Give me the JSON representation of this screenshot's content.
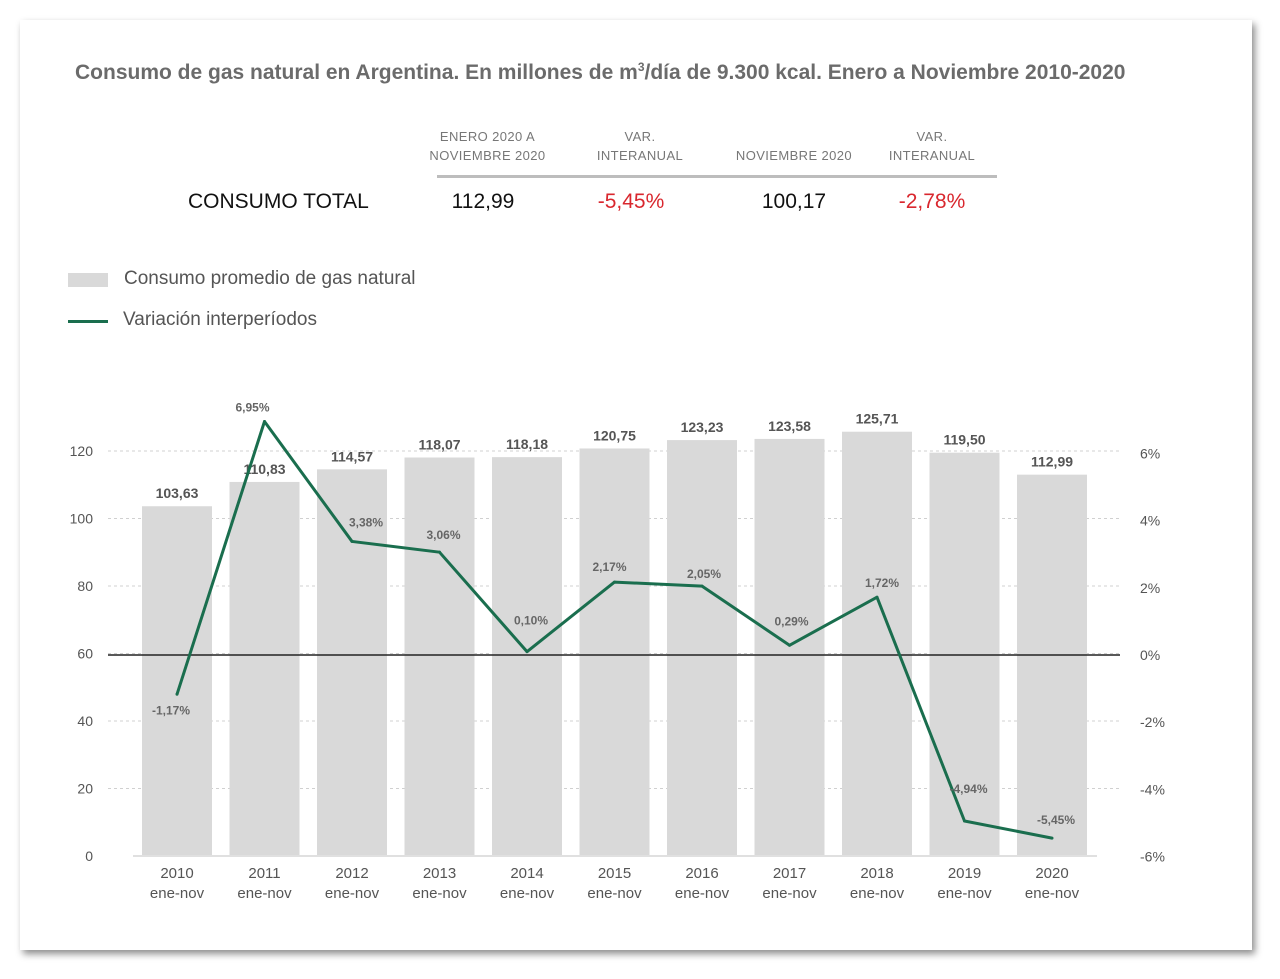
{
  "title": {
    "main": "Consumo de gas natural en Argentina. En millones de  m",
    "sup": "3",
    "rest": "/día de 9.300 kcal. Enero a Noviembre 2010-2020"
  },
  "summary": {
    "headers": [
      "ENERO 2020 A NOVIEMBRE 2020",
      "VAR. INTERANUAL",
      "NOVIEMBRE 2020",
      "VAR. INTERANUAL"
    ],
    "header_lines": [
      [
        "ENERO 2020 A",
        "NOVIEMBRE 2020"
      ],
      [
        "VAR.",
        "INTERANUAL"
      ],
      [
        "NOVIEMBRE 2020"
      ],
      [
        "VAR.",
        "INTERANUAL"
      ]
    ],
    "row_label": "CONSUMO TOTAL",
    "values": [
      "112,99",
      "-5,45%",
      "100,17",
      "-2,78%"
    ]
  },
  "legend": {
    "bar_label": "Consumo promedio de gas natural",
    "line_label": "Variación interperíodos"
  },
  "colors": {
    "bar": "#d9d9d9",
    "line": "#1a6e4e",
    "negative": "#d9272e",
    "title": "#6b6b6b"
  },
  "chart_data": {
    "type": "bar",
    "categories": [
      "2010",
      "2011",
      "2012",
      "2013",
      "2014",
      "2015",
      "2016",
      "2017",
      "2018",
      "2019",
      "2020"
    ],
    "category_sublabel": "ene-nov",
    "series": [
      {
        "name": "Consumo promedio de gas natural",
        "type": "bar",
        "axis": "left",
        "values": [
          103.63,
          110.83,
          114.57,
          118.07,
          118.18,
          120.75,
          123.23,
          123.58,
          125.71,
          119.5,
          112.99
        ],
        "labels": [
          "103,63",
          "110,83",
          "114,57",
          "118,07",
          "118,18",
          "120,75",
          "123,23",
          "123,58",
          "125,71",
          "119,50",
          "112,99"
        ]
      },
      {
        "name": "Variación interperíodos",
        "type": "line",
        "axis": "right",
        "values": [
          -1.17,
          6.95,
          3.38,
          3.06,
          0.1,
          2.17,
          2.05,
          0.29,
          1.72,
          -4.94,
          -5.45
        ],
        "labels": [
          "-1,17%",
          "6,95%",
          "3,38%",
          "3,06%",
          "0,10%",
          "2,17%",
          "2,05%",
          "0,29%",
          "1,72%",
          "-4,94%",
          "-5,45%"
        ]
      }
    ],
    "left_axis": {
      "ylim": [
        0,
        120
      ],
      "ticks": [
        0,
        20,
        40,
        60,
        80,
        100,
        120
      ]
    },
    "right_axis": {
      "ylim": [
        -6,
        6
      ],
      "ticks": [
        "-6%",
        "-4%",
        "-2%",
        "0%",
        "2%",
        "4%",
        "6%"
      ]
    },
    "grid": "dashed horizontal"
  }
}
